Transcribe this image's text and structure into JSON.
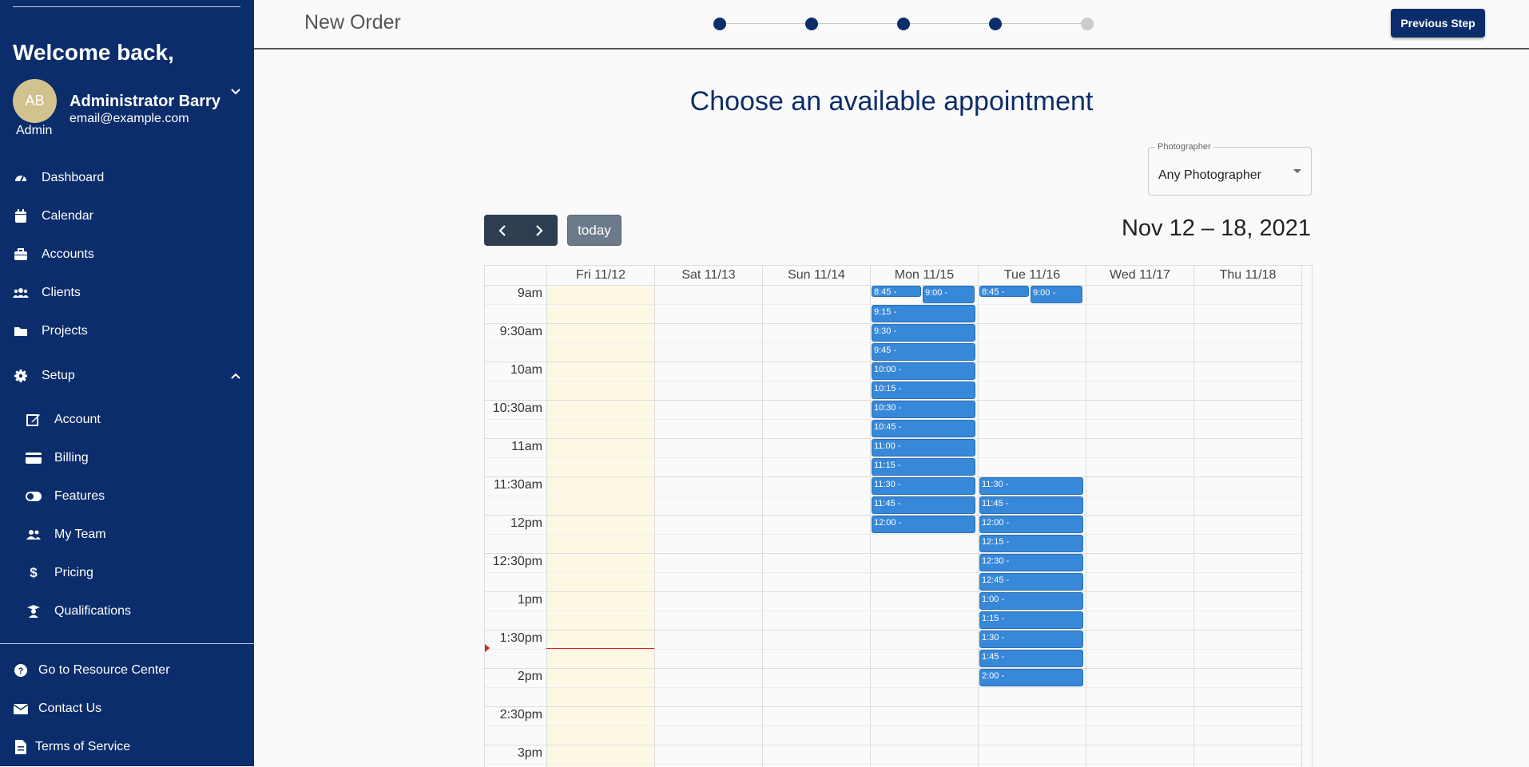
{
  "sidebar": {
    "welcome": "Welcome back,",
    "avatar_initials": "AB",
    "role": "Admin",
    "user_name": "Administrator Barry",
    "user_email": "email@example.com",
    "items": [
      {
        "label": "Dashboard",
        "icon": "dashboard-icon"
      },
      {
        "label": "Calendar",
        "icon": "calendar-icon"
      },
      {
        "label": "Accounts",
        "icon": "briefcase-icon"
      },
      {
        "label": "Clients",
        "icon": "users-icon"
      },
      {
        "label": "Projects",
        "icon": "folder-icon"
      },
      {
        "label": "Setup",
        "icon": "gear-icon"
      }
    ],
    "setup_items": [
      {
        "label": "Account",
        "icon": "edit-icon"
      },
      {
        "label": "Billing",
        "icon": "credit-card-icon"
      },
      {
        "label": "Features",
        "icon": "toggle-icon"
      },
      {
        "label": "My Team",
        "icon": "team-icon"
      },
      {
        "label": "Pricing",
        "icon": "dollar-icon"
      },
      {
        "label": "Qualifications",
        "icon": "graduate-icon"
      }
    ],
    "footer_items": [
      {
        "label": "Go to Resource Center",
        "icon": "question-icon"
      },
      {
        "label": "Contact Us",
        "icon": "envelope-icon"
      },
      {
        "label": "Terms of Service",
        "icon": "document-icon"
      }
    ]
  },
  "header": {
    "title": "New Order",
    "steps_total": 5,
    "steps_completed": 4,
    "previous_label": "Previous Step"
  },
  "main": {
    "heading": "Choose an available appointment",
    "photographer_label": "Photographer",
    "photographer_value": "Any Photographer",
    "today_label": "today",
    "date_range": "Nov 12 – 18, 2021"
  },
  "calendar": {
    "days": [
      "Fri 11/12",
      "Sat 11/13",
      "Sun 11/14",
      "Mon 11/15",
      "Tue 11/16",
      "Wed 11/17",
      "Thu 11/18"
    ],
    "time_labels": [
      "9am",
      "9:30am",
      "10am",
      "10:30am",
      "11am",
      "11:30am",
      "12pm",
      "12:30pm",
      "1pm",
      "1:30pm",
      "2pm",
      "2:30pm",
      "3pm"
    ],
    "today_index": 0,
    "mon_events": [
      "8:45 -",
      "9:00 -",
      "9:15 -",
      "9:30 -",
      "9:45 -",
      "10:00 -",
      "10:15 -",
      "10:30 -",
      "10:45 -",
      "11:00 -",
      "11:15 -",
      "11:30 -",
      "11:45 -",
      "12:00 -"
    ],
    "tue_events": [
      "8:45 -",
      "9:00 -",
      "11:30 -",
      "11:45 -",
      "12:00 -",
      "12:15 -",
      "12:30 -",
      "12:45 -",
      "1:00 -",
      "1:15 -",
      "1:30 -",
      "1:45 -",
      "2:00 -"
    ],
    "event_color": "#3788d8",
    "today_color": "#fcf8e3",
    "now_line_color": "#e02020"
  },
  "colors": {
    "brand": "#0c2d6b"
  }
}
